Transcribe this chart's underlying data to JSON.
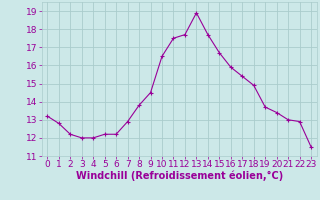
{
  "x": [
    0,
    1,
    2,
    3,
    4,
    5,
    6,
    7,
    8,
    9,
    10,
    11,
    12,
    13,
    14,
    15,
    16,
    17,
    18,
    19,
    20,
    21,
    22,
    23
  ],
  "y": [
    13.2,
    12.8,
    12.2,
    12.0,
    12.0,
    12.2,
    12.2,
    12.9,
    13.8,
    14.5,
    16.5,
    17.5,
    17.7,
    18.9,
    17.7,
    16.7,
    15.9,
    15.4,
    14.9,
    13.7,
    13.4,
    13.0,
    12.9,
    11.5
  ],
  "line_color": "#990099",
  "marker": "+",
  "marker_size": 3,
  "bg_color": "#cce8e8",
  "grid_color": "#aacccc",
  "xlabel": "Windchill (Refroidissement éolien,°C)",
  "xlabel_color": "#990099",
  "xlabel_fontsize": 7,
  "tick_color": "#990099",
  "tick_fontsize": 6.5,
  "ylim": [
    11,
    19.5
  ],
  "xlim": [
    -0.5,
    23.5
  ],
  "yticks": [
    11,
    12,
    13,
    14,
    15,
    16,
    17,
    18,
    19
  ],
  "xticks": [
    0,
    1,
    2,
    3,
    4,
    5,
    6,
    7,
    8,
    9,
    10,
    11,
    12,
    13,
    14,
    15,
    16,
    17,
    18,
    19,
    20,
    21,
    22,
    23
  ]
}
